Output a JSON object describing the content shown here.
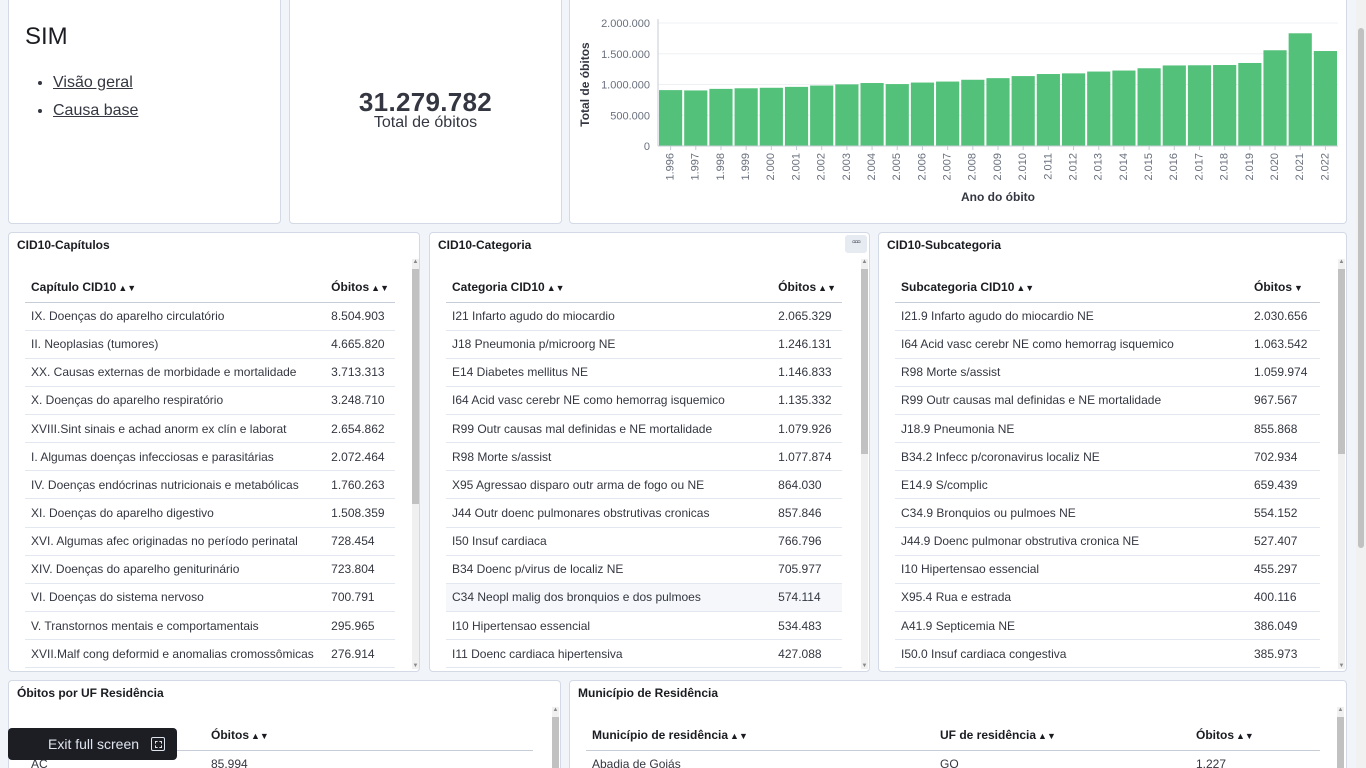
{
  "sim": {
    "title": "SIM",
    "links": [
      "Visão geral",
      "Causa base"
    ]
  },
  "metric": {
    "value": "31.279.782",
    "label": "Total de óbitos"
  },
  "chart_data": {
    "type": "bar",
    "title": "",
    "xlabel": "Ano do óbito",
    "ylabel": "Total de óbitos",
    "ylim": [
      0,
      2000000
    ],
    "yticks": [
      "2.000.000",
      "1.500.000",
      "1.000.000",
      "500.000",
      "0"
    ],
    "yticks_values": [
      2000000,
      1500000,
      1000000,
      500000,
      0
    ],
    "categories": [
      "1.996",
      "1.997",
      "1.998",
      "1.999",
      "2.000",
      "2.001",
      "2.002",
      "2.003",
      "2.004",
      "2.005",
      "2.006",
      "2.007",
      "2.008",
      "2.009",
      "2.010",
      "2.011",
      "2.012",
      "2.013",
      "2.014",
      "2.015",
      "2.016",
      "2.017",
      "2.018",
      "2.019",
      "2.020",
      "2.021",
      "2.022"
    ],
    "values": [
      908883,
      903516,
      929023,
      938658,
      946686,
      961492,
      982807,
      1002340,
      1024073,
      1006827,
      1031691,
      1047824,
      1077007,
      1103088,
      1136947,
      1170498,
      1181166,
      1210474,
      1227039,
      1264175,
      1309774,
      1312663,
      1316719,
      1349801,
      1556824,
      1832649,
      1544266
    ],
    "color": "#54c17a"
  },
  "cap": {
    "title": "CID10-Capítulos",
    "col1": "Capítulo CID10",
    "col2": "Óbitos",
    "rows": [
      [
        "IX. Doenças do aparelho circulatório",
        "8.504.903"
      ],
      [
        "II. Neoplasias (tumores)",
        "4.665.820"
      ],
      [
        "XX. Causas externas de morbidade e mortalidade",
        "3.713.313"
      ],
      [
        "X. Doenças do aparelho respiratório",
        "3.248.710"
      ],
      [
        "XVIII.Sint sinais e achad anorm ex clín e laborat",
        "2.654.862"
      ],
      [
        "I. Algumas doenças infecciosas e parasitárias",
        "2.072.464"
      ],
      [
        "IV. Doenças endócrinas nutricionais e metabólicas",
        "1.760.263"
      ],
      [
        "XI. Doenças do aparelho digestivo",
        "1.508.359"
      ],
      [
        "XVI. Algumas afec originadas no período perinatal",
        "728.454"
      ],
      [
        "XIV. Doenças do aparelho geniturinário",
        "723.804"
      ],
      [
        "VI. Doenças do sistema nervoso",
        "700.791"
      ],
      [
        "V. Transtornos mentais e comportamentais",
        "295.965"
      ],
      [
        "XVII.Malf cong deformid e anomalias cromossômicas",
        "276.914"
      ]
    ]
  },
  "cat": {
    "title": "CID10-Categoria",
    "menu": "▫▫▫",
    "col1": "Categoria CID10",
    "col2": "Óbitos",
    "rows": [
      [
        "I21 Infarto agudo do miocardio",
        "2.065.329"
      ],
      [
        "J18 Pneumonia p/microorg NE",
        "1.246.131"
      ],
      [
        "E14 Diabetes mellitus NE",
        "1.146.833"
      ],
      [
        "I64 Acid vasc cerebr NE como hemorrag isquemico",
        "1.135.332"
      ],
      [
        "R99 Outr causas mal definidas e NE mortalidade",
        "1.079.926"
      ],
      [
        "R98 Morte s/assist",
        "1.077.874"
      ],
      [
        "X95 Agressao disparo outr arma de fogo ou NE",
        "864.030"
      ],
      [
        "J44 Outr doenc pulmonares obstrutivas cronicas",
        "857.846"
      ],
      [
        "I50 Insuf cardiaca",
        "766.796"
      ],
      [
        "B34 Doenc p/virus de localiz NE",
        "705.977"
      ],
      [
        "C34 Neopl malig dos bronquios e dos pulmoes",
        "574.114"
      ],
      [
        "I10 Hipertensao essencial",
        "534.483"
      ],
      [
        "I11 Doenc cardiaca hipertensiva",
        "427.088"
      ]
    ]
  },
  "sub": {
    "title": "CID10-Subcategoria",
    "col1": "Subcategoria CID10",
    "col2": "Óbitos",
    "rows": [
      [
        "I21.9 Infarto agudo do miocardio NE",
        "2.030.656"
      ],
      [
        "I64 Acid vasc cerebr NE como hemorrag isquemico",
        "1.063.542"
      ],
      [
        "R98 Morte s/assist",
        "1.059.974"
      ],
      [
        "R99 Outr causas mal definidas e NE mortalidade",
        "967.567"
      ],
      [
        "J18.9 Pneumonia NE",
        "855.868"
      ],
      [
        "B34.2 Infecc p/coronavirus localiz NE",
        "702.934"
      ],
      [
        "E14.9 S/complic",
        "659.439"
      ],
      [
        "C34.9 Bronquios ou pulmoes NE",
        "554.152"
      ],
      [
        "J44.9 Doenc pulmonar obstrutiva cronica NE",
        "527.407"
      ],
      [
        "I10 Hipertensao essencial",
        "455.297"
      ],
      [
        "X95.4 Rua e estrada",
        "400.116"
      ],
      [
        "A41.9 Septicemia NE",
        "386.049"
      ],
      [
        "I50.0 Insuf cardiaca congestiva",
        "385.973"
      ]
    ]
  },
  "uf": {
    "title": "Óbitos por UF Residência",
    "col2": "Óbitos",
    "row": [
      "AC",
      "85.994"
    ]
  },
  "mun": {
    "title": "Município de Residência",
    "col1": "Município de residência",
    "col2": "UF de residência",
    "col3": "Óbitos",
    "row": [
      "Abadia de Goiás",
      "GO",
      "1.227"
    ]
  },
  "exit": {
    "label": "Exit full screen"
  },
  "sort_both": "▲▼",
  "sort_down": "▼"
}
